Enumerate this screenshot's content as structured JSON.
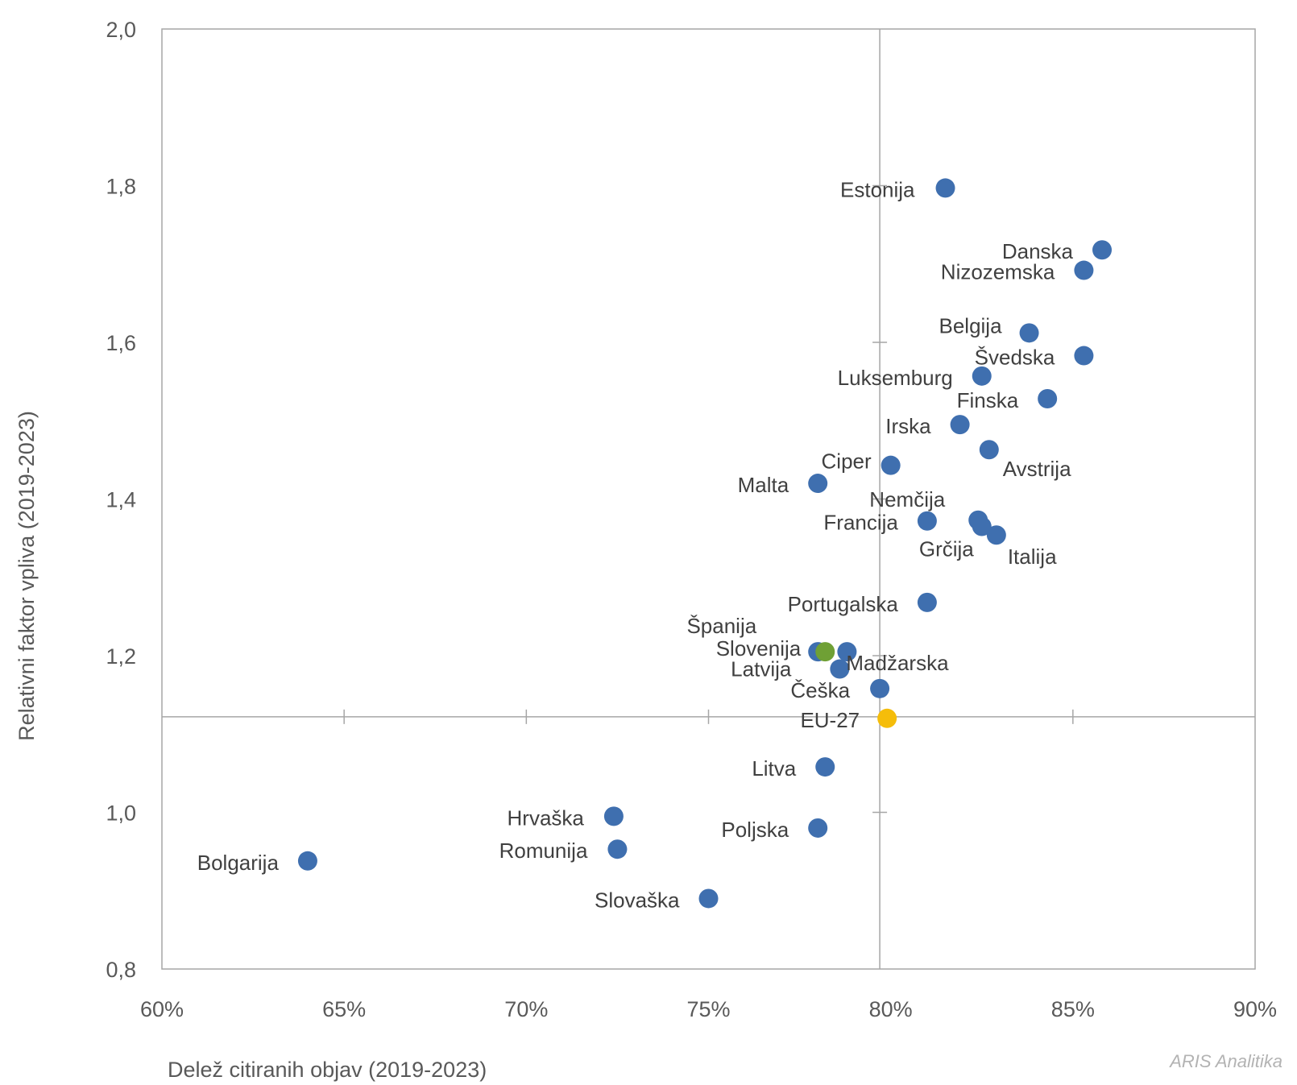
{
  "chart_data": {
    "type": "scatter",
    "xlabel": "Delež citiranih objav (2019-2023)",
    "ylabel": "Relativni faktor vpliva (2019-2023)",
    "xlim": [
      0.6,
      0.9
    ],
    "ylim": [
      0.8,
      2.0
    ],
    "x_ticks": [
      "60%",
      "65%",
      "70%",
      "75%",
      "80%",
      "85%",
      "90%"
    ],
    "y_ticks": [
      "0,8",
      "1,0",
      "1,2",
      "1,4",
      "1,6",
      "1,8",
      "2,0"
    ],
    "reference_lines": {
      "x": 0.797,
      "y": 1.122
    },
    "grid": false,
    "colors": {
      "default": "#3f6faf",
      "highlight": "#6fa035",
      "average": "#f5bd0a"
    },
    "points": [
      {
        "name": "Estonija",
        "x": 0.815,
        "y": 1.797
      },
      {
        "name": "Danska",
        "x": 0.858,
        "y": 1.718
      },
      {
        "name": "Nizozemska",
        "x": 0.853,
        "y": 1.692
      },
      {
        "name": "Belgija",
        "x": 0.838,
        "y": 1.612
      },
      {
        "name": "Švedska",
        "x": 0.853,
        "y": 1.583
      },
      {
        "name": "Luksemburg",
        "x": 0.825,
        "y": 1.557
      },
      {
        "name": "Finska",
        "x": 0.843,
        "y": 1.528
      },
      {
        "name": "Irska",
        "x": 0.819,
        "y": 1.495
      },
      {
        "name": "Avstrija",
        "x": 0.827,
        "y": 1.463
      },
      {
        "name": "Ciper",
        "x": 0.8,
        "y": 1.443
      },
      {
        "name": "Malta",
        "x": 0.78,
        "y": 1.42
      },
      {
        "name": "Nemčija",
        "x": 0.824,
        "y": 1.373
      },
      {
        "name": "Francija",
        "x": 0.81,
        "y": 1.372
      },
      {
        "name": "Grčija",
        "x": 0.825,
        "y": 1.365
      },
      {
        "name": "Italija",
        "x": 0.829,
        "y": 1.354
      },
      {
        "name": "Portugalska",
        "x": 0.81,
        "y": 1.268
      },
      {
        "name": "Španija",
        "x": 0.78,
        "y": 1.205
      },
      {
        "name": "Slovenija",
        "x": 0.782,
        "y": 1.205,
        "group": "highlight"
      },
      {
        "name": "Madžarska",
        "x": 0.788,
        "y": 1.205
      },
      {
        "name": "Latvija",
        "x": 0.786,
        "y": 1.183
      },
      {
        "name": "Češka",
        "x": 0.797,
        "y": 1.158
      },
      {
        "name": "EU-27",
        "x": 0.799,
        "y": 1.12,
        "group": "average"
      },
      {
        "name": "Litva",
        "x": 0.782,
        "y": 1.058
      },
      {
        "name": "Hrvaška",
        "x": 0.724,
        "y": 0.995
      },
      {
        "name": "Poljska",
        "x": 0.78,
        "y": 0.98
      },
      {
        "name": "Romunija",
        "x": 0.725,
        "y": 0.953
      },
      {
        "name": "Bolgarija",
        "x": 0.64,
        "y": 0.938
      },
      {
        "name": "Slovaška",
        "x": 0.75,
        "y": 0.89
      }
    ]
  },
  "credit": "ARIS Analitika"
}
